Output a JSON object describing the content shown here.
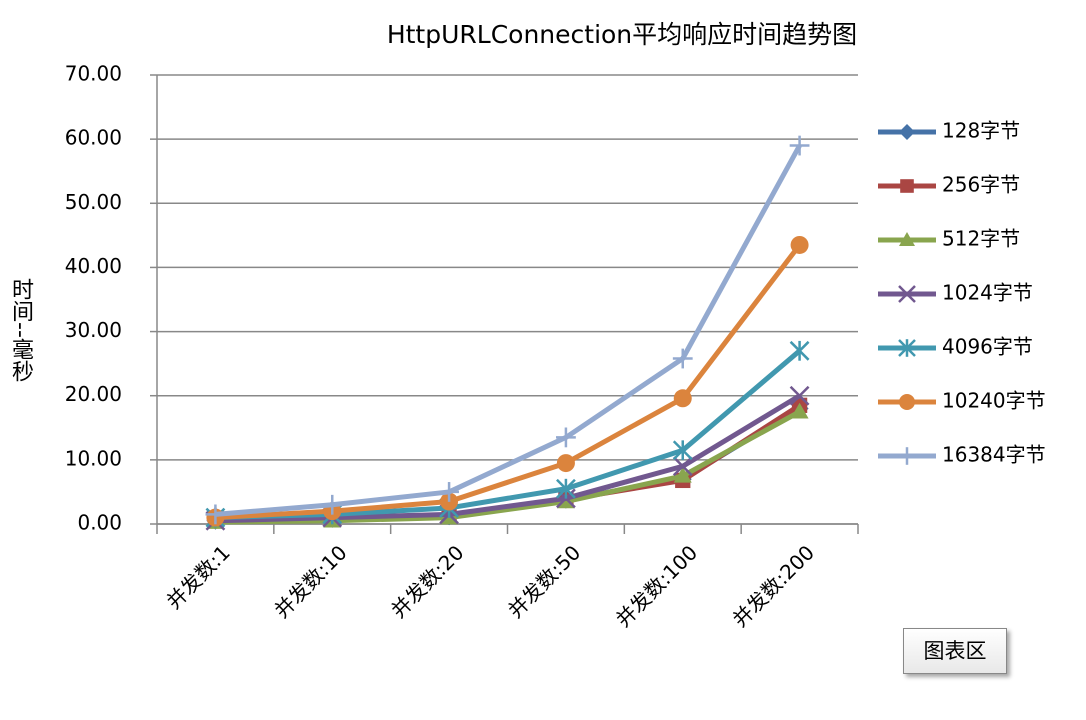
{
  "chart_data": {
    "type": "line",
    "title": "HttpURLConnection平均响应时间趋势图",
    "y_label": "时间--毫秒",
    "categories": [
      "并发数:1",
      "并发数:10",
      "并发数:20",
      "并发数:50",
      "并发数:100",
      "并发数:200"
    ],
    "ylim": [
      0,
      70
    ],
    "yticks": [
      {
        "value": 0,
        "label": "0.00"
      },
      {
        "value": 10,
        "label": "10.00"
      },
      {
        "value": 20,
        "label": "20.00"
      },
      {
        "value": 30,
        "label": "30.00"
      },
      {
        "value": 40,
        "label": "40.00"
      },
      {
        "value": 50,
        "label": "50.00"
      },
      {
        "value": 60,
        "label": "60.00"
      },
      {
        "value": 70,
        "label": "70.00"
      }
    ],
    "grid": true,
    "legend": "right",
    "series": [
      {
        "name": "128字节",
        "color": "#4572a7",
        "marker": "diamond",
        "values": [
          0.5,
          0.8,
          1.2,
          3.8,
          7,
          18
        ]
      },
      {
        "name": "256字节",
        "color": "#aa4643",
        "marker": "square",
        "values": [
          0.5,
          0.8,
          1.2,
          3.8,
          6.8,
          18.5
        ]
      },
      {
        "name": "512字节",
        "color": "#89a54e",
        "marker": "triangle",
        "values": [
          0.3,
          0.5,
          1,
          3.5,
          7.5,
          17.5
        ]
      },
      {
        "name": "1024字节",
        "color": "#71588f",
        "marker": "x",
        "values": [
          0.5,
          1,
          1.5,
          4,
          9,
          20
        ]
      },
      {
        "name": "4096字节",
        "color": "#4198af",
        "marker": "asterisk",
        "values": [
          1,
          1.5,
          2.5,
          5.5,
          11.5,
          27
        ]
      },
      {
        "name": "10240字节",
        "color": "#db843d",
        "marker": "circle",
        "values": [
          1,
          2,
          3.5,
          9.5,
          19.6,
          43.5
        ]
      },
      {
        "name": "16384字节",
        "color": "#93a9cf",
        "marker": "plus",
        "values": [
          1.5,
          3,
          5,
          13.5,
          25.8,
          59
        ]
      }
    ]
  },
  "tooltip": "图表区"
}
